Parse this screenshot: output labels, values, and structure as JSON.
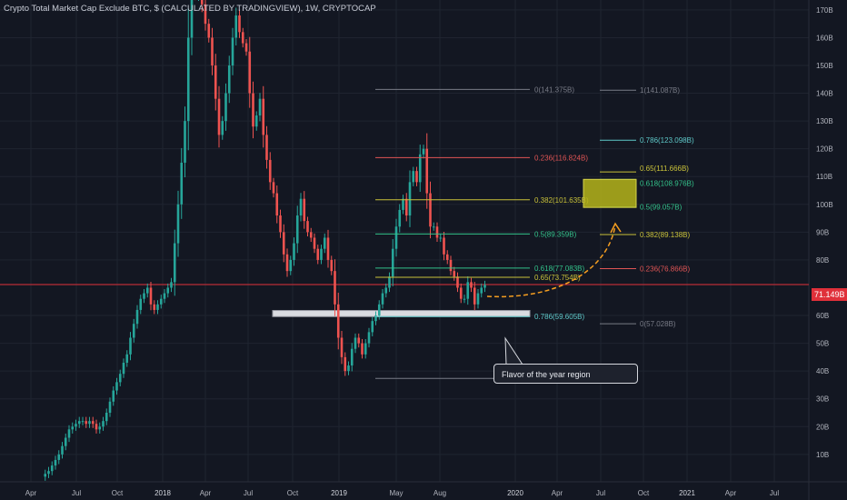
{
  "title": "Crypto Total Market Cap Exclude BTC, $ (CALCULATED BY TRADINGVIEW), 1W, CRYPTOCAP",
  "current_price_label": "71.149B",
  "callout_text": "Flavor of the year region",
  "colors": {
    "background": "#131722",
    "up": "#26a69a",
    "down": "#ef5350",
    "grid": "#1f2430",
    "price_line": "#e0303a",
    "arrow": "#f59e20",
    "box_fill": "#b5b41a"
  },
  "chart_data": {
    "type": "candlestick",
    "title": "Crypto Total Market Cap Exclude BTC, $ (CALCULATED BY TRADINGVIEW), 1W, CRYPTOCAP",
    "y_axis_labels": [
      "170B",
      "160B",
      "150B",
      "140B",
      "130B",
      "120B",
      "110B",
      "100B",
      "90B",
      "80B",
      "60B",
      "50B",
      "40B",
      "30B",
      "20B",
      "10B"
    ],
    "y_axis_values": [
      170,
      160,
      150,
      140,
      130,
      120,
      110,
      100,
      90,
      80,
      60,
      50,
      40,
      30,
      20,
      10
    ],
    "x_axis_labels": [
      "Apr",
      "Jul",
      "Oct",
      "2018",
      "Apr",
      "Jul",
      "Oct",
      "2019",
      "May",
      "Aug",
      "2020",
      "Apr",
      "Jul",
      "Oct",
      "2021",
      "Apr",
      "Jul"
    ],
    "ylim": [
      0,
      178
    ],
    "current_price": 71.149,
    "closes": [
      2,
      3,
      4,
      6,
      8,
      10,
      13,
      16,
      19,
      20,
      21,
      22,
      22,
      21,
      22,
      21,
      19,
      20,
      22,
      25,
      29,
      33,
      36,
      39,
      43,
      46,
      52,
      57,
      62,
      66,
      68,
      70,
      64,
      62,
      64,
      66,
      68,
      70,
      72,
      86,
      100,
      115,
      130,
      160,
      178,
      175,
      180,
      172,
      165,
      160,
      150,
      138,
      125,
      130,
      140,
      150,
      160,
      168,
      162,
      158,
      155,
      140,
      128,
      132,
      138,
      125,
      116,
      108,
      104,
      96,
      90,
      82,
      76,
      80,
      86,
      96,
      102,
      94,
      90,
      88,
      84,
      80,
      84,
      88,
      80,
      76,
      64,
      52,
      45,
      40,
      42,
      48,
      52,
      50,
      46,
      50,
      54,
      58,
      60,
      64,
      68,
      70,
      74,
      84,
      92,
      98,
      102,
      96,
      108,
      112,
      108,
      118,
      120,
      104,
      92,
      92,
      88,
      88,
      82,
      80,
      76,
      74,
      70,
      66,
      66,
      72,
      70,
      64,
      68,
      70,
      71
    ],
    "fib_sets": [
      {
        "levels": [
          {
            "label": "0(141.375B)",
            "value": 141.375
          },
          {
            "label": "0.236(116.824B)",
            "value": 116.824
          },
          {
            "label": "0.382(101.635B)",
            "value": 101.635
          },
          {
            "label": "0.5(89.359B)",
            "value": 89.359
          },
          {
            "label": "0.618(77.083B)",
            "value": 77.083
          },
          {
            "label": "0.65(73.754B)",
            "value": 73.754
          },
          {
            "label": "0.786(59.605B)",
            "value": 59.605
          },
          {
            "label": "1(37.342B)",
            "value": 37.342
          }
        ]
      },
      {
        "levels": [
          {
            "label": "1(141.087B)",
            "value": 141.087
          },
          {
            "label": "0.786(123.098B)",
            "value": 123.098
          },
          {
            "label": "0.65(111.666B)",
            "value": 111.666
          },
          {
            "label": "0.618(108.976B)",
            "value": 108.976
          },
          {
            "label": "0.5(99.057B)",
            "value": 99.057
          },
          {
            "label": "0.382(89.138B)",
            "value": 89.138
          },
          {
            "label": "0.236(76.866B)",
            "value": 76.866
          },
          {
            "label": "0(57.028B)",
            "value": 57.028
          }
        ]
      }
    ],
    "support_zone": [
      59.6,
      61.8
    ],
    "target_box": [
      98.9,
      109.0
    ]
  }
}
